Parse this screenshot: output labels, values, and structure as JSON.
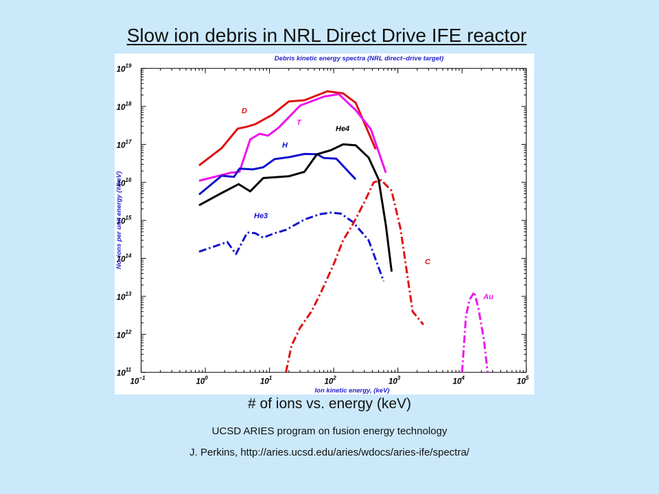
{
  "slide": {
    "title": "Slow ion debris in NRL Direct Drive IFE reactor",
    "caption": "# of ions vs. energy (keV)",
    "credit_line1": "UCSD ARIES program on fusion energy technology",
    "credit_line2": "J. Perkins, http://aries.ucsd.edu/aries/wdocs/aries-ife/spectra/"
  },
  "chart_data": {
    "type": "line",
    "title": "Debris kinetic energy spectra (NRL direct–drive target)",
    "xlabel": "Ion kinetic energy, (keV)",
    "ylabel": "No. ions per unit energy (#/keV)",
    "x_scale": "log",
    "y_scale": "log",
    "xlim": [
      0.1,
      100000
    ],
    "ylim": [
      100000000000.0,
      1e+19
    ],
    "x_ticks": [
      {
        "base": "10",
        "exp": "−1"
      },
      {
        "base": "10",
        "exp": "0"
      },
      {
        "base": "10",
        "exp": "1"
      },
      {
        "base": "10",
        "exp": "2"
      },
      {
        "base": "10",
        "exp": "3"
      },
      {
        "base": "10",
        "exp": "4"
      },
      {
        "base": "10",
        "exp": "5"
      }
    ],
    "y_ticks": [
      {
        "base": "10",
        "exp": "11"
      },
      {
        "base": "10",
        "exp": "12"
      },
      {
        "base": "10",
        "exp": "13"
      },
      {
        "base": "10",
        "exp": "14"
      },
      {
        "base": "10",
        "exp": "15"
      },
      {
        "base": "10",
        "exp": "16"
      },
      {
        "base": "10",
        "exp": "17"
      },
      {
        "base": "10",
        "exp": "18"
      },
      {
        "base": "10",
        "exp": "19"
      }
    ],
    "grid": false,
    "series": [
      {
        "name": "D",
        "color": "#dd1111",
        "style": "solid",
        "x": [
          0.8,
          1.8,
          3.2,
          4.4,
          6.0,
          11,
          20,
          35,
          80,
          140,
          220,
          450
        ],
        "y": [
          2.8e+16,
          8e+16,
          2.6e+17,
          2.9e+17,
          3.4e+17,
          6e+17,
          1.35e+18,
          1.45e+18,
          2.5e+18,
          2.2e+18,
          1.25e+18,
          7.5e+16
        ]
      },
      {
        "name": "T",
        "color": "#ee11ee",
        "style": "solid",
        "x": [
          0.8,
          2.5,
          3.4,
          5.0,
          7.0,
          9.5,
          14,
          30,
          70,
          120,
          220,
          380,
          650
        ],
        "y": [
          1.1e+16,
          1.8e+16,
          1.9e+16,
          1.35e+17,
          1.9e+17,
          1.7e+17,
          2.8e+17,
          1.05e+18,
          1.8e+18,
          2.1e+18,
          8e+17,
          2.5e+17,
          1.8e+16
        ]
      },
      {
        "name": "H",
        "color": "#1111cc",
        "style": "solid",
        "x": [
          0.8,
          1.8,
          2.8,
          3.4,
          5.5,
          8.0,
          12,
          20,
          35,
          55,
          70,
          110,
          220
        ],
        "y": [
          4800000000000000.0,
          1.5e+16,
          1.4e+16,
          2.3e+16,
          2.2e+16,
          2.5e+16,
          4.1e+16,
          4.6e+16,
          5.6e+16,
          5.5e+16,
          4.4e+16,
          4.2e+16,
          1.2e+16
        ]
      },
      {
        "name": "He4",
        "color": "#000000",
        "style": "solid",
        "x": [
          0.8,
          1.7,
          3.3,
          5.0,
          8.0,
          20,
          35,
          55,
          90,
          140,
          220,
          350,
          500,
          650,
          800
        ],
        "y": [
          2500000000000000.0,
          5000000000000000.0,
          9000000000000000.0,
          5800000000000000.0,
          1.3e+16,
          1.45e+16,
          1.9e+16,
          5.5e+16,
          7e+16,
          1e+17,
          9.5e+16,
          4.5e+16,
          1.2e+16,
          750000000000000.0,
          45000000000000.0
        ]
      },
      {
        "name": "He3",
        "color": "#1111cc",
        "style": "dashdot",
        "x": [
          0.8,
          2.2,
          3.0,
          4.5,
          6.0,
          8.0,
          12,
          18,
          35,
          60,
          90,
          130,
          200,
          350,
          600
        ],
        "y": [
          150000000000000.0,
          270000000000000.0,
          130000000000000.0,
          480000000000000.0,
          460000000000000.0,
          350000000000000.0,
          460000000000000.0,
          560000000000000.0,
          1050000000000000.0,
          1450000000000000.0,
          1600000000000000.0,
          1500000000000000.0,
          900000000000000.0,
          300000000000000.0,
          25000000000000.0
        ]
      },
      {
        "name": "C",
        "color": "#dd1111",
        "style": "dashdot",
        "x": [
          18,
          22,
          30,
          45,
          65,
          100,
          140,
          200,
          300,
          420,
          550,
          800,
          1100,
          1700,
          2500
        ],
        "y": [
          100000000000.0,
          500000000000.0,
          1500000000000.0,
          4000000000000.0,
          14000000000000.0,
          70000000000000.0,
          300000000000000.0,
          800000000000000.0,
          3000000000000000.0,
          1e+16,
          1.15e+16,
          6000000000000000.0,
          600000000000000.0,
          4000000000000.0,
          1800000000000.0
        ]
      },
      {
        "name": "Au",
        "color": "#ee11ee",
        "style": "dashdot",
        "x": [
          10000,
          11500,
          13000,
          15500,
          18000,
          22000,
          25000
        ],
        "y": [
          100000000000.0,
          3000000000000.0,
          8000000000000.0,
          13000000000000.0,
          4800000000000.0,
          700000000000.0,
          100000000000.0
        ]
      }
    ]
  }
}
